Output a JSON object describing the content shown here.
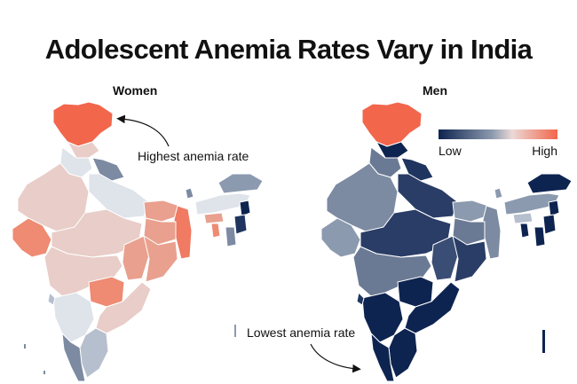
{
  "title": "Adolescent Anemia Rates Vary in India",
  "panels": {
    "women": {
      "label": "Women"
    },
    "men": {
      "label": "Men"
    }
  },
  "annotations": {
    "highest": "Highest anemia rate",
    "lowest": "Lowest anemia rate"
  },
  "legend": {
    "low_label": "Low",
    "high_label": "High",
    "colors": [
      "#0e2450",
      "#8c9aaf",
      "#ecd9d6",
      "#f2664c"
    ]
  },
  "color_scale": {
    "high": "#f2664c",
    "mid_high": "#e9a08e",
    "mid": "#e8cdc8",
    "neutral": "#dfe3ea",
    "mid_low": "#7c8aa2",
    "low": "#0e2450"
  }
}
